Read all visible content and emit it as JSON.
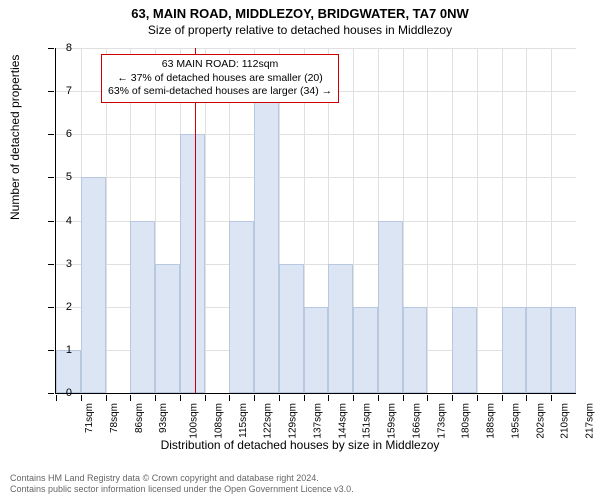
{
  "title": "63, MAIN ROAD, MIDDLEZOY, BRIDGWATER, TA7 0NW",
  "subtitle": "Size of property relative to detached houses in Middlezoy",
  "ylabel": "Number of detached properties",
  "xlabel": "Distribution of detached houses by size in Middlezoy",
  "chart": {
    "type": "histogram",
    "ylim": [
      0,
      8
    ],
    "ytick_step": 1,
    "categories": [
      "71sqm",
      "78sqm",
      "86sqm",
      "93sqm",
      "100sqm",
      "108sqm",
      "115sqm",
      "122sqm",
      "129sqm",
      "137sqm",
      "144sqm",
      "151sqm",
      "159sqm",
      "166sqm",
      "173sqm",
      "180sqm",
      "188sqm",
      "195sqm",
      "202sqm",
      "210sqm",
      "217sqm"
    ],
    "values": [
      1,
      5,
      0,
      4,
      3,
      6,
      0,
      4,
      7,
      3,
      2,
      3,
      2,
      4,
      2,
      0,
      2,
      0,
      2,
      2,
      2
    ],
    "bar_color": "#dbe5f4",
    "bar_border_color": "#b8c8e0",
    "grid_color": "#e0e0e0",
    "background_color": "#ffffff",
    "bar_width": 1.0,
    "reference_line_x": 112,
    "reference_line_color": "#cc0000",
    "x_range": [
      71,
      224
    ]
  },
  "annotation": {
    "line1": "63 MAIN ROAD: 112sqm",
    "line2": "← 37% of detached houses are smaller (20)",
    "line3": "63% of semi-detached houses are larger (34) →",
    "border_color": "#cc0000"
  },
  "footer": {
    "line1": "Contains HM Land Registry data © Crown copyright and database right 2024.",
    "line2": "Contains public sector information licensed under the Open Government Licence v3.0."
  }
}
